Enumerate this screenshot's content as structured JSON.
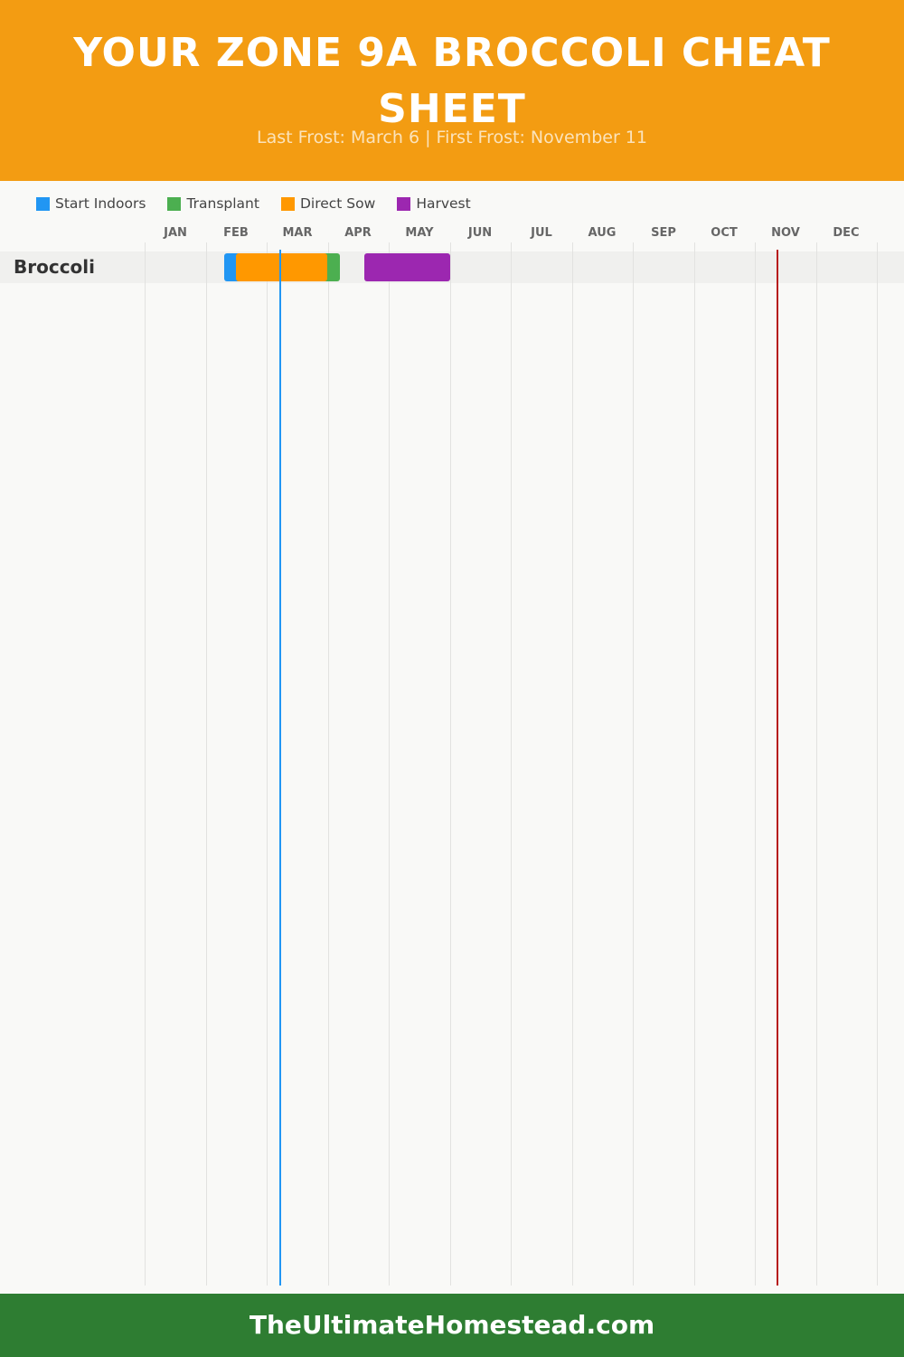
{
  "header": {
    "title": "YOUR ZONE 9A BROCCOLI CHEAT SHEET",
    "subtitle": "Last Frost: March 6 | First Frost: November 11"
  },
  "colors": {
    "header_bg": "#f39c12",
    "footer_bg": "#2e7d32",
    "last_frost_line": "#2196f3",
    "first_frost_line": "#b71c1c"
  },
  "chart_data": {
    "type": "gantt",
    "x_unit": "month",
    "categories": [
      "JAN",
      "FEB",
      "MAR",
      "APR",
      "MAY",
      "JUN",
      "JUL",
      "AUG",
      "SEP",
      "OCT",
      "NOV",
      "DEC"
    ],
    "legend": [
      {
        "key": "start_indoors",
        "label": "Start Indoors",
        "color": "#2196f3"
      },
      {
        "key": "transplant",
        "label": "Transplant",
        "color": "#4caf50"
      },
      {
        "key": "direct_sow",
        "label": "Direct Sow",
        "color": "#ff9800"
      },
      {
        "key": "harvest",
        "label": "Harvest",
        "color": "#9c27b0"
      }
    ],
    "legend_position": "top-left",
    "grid": true,
    "rows": [
      {
        "label": "Broccoli",
        "phases": [
          {
            "key": "start_indoors",
            "start_month": 2.3,
            "end_month": 3.5
          },
          {
            "key": "transplant",
            "start_month": 3.4,
            "end_month": 4.2
          },
          {
            "key": "direct_sow",
            "start_month": 2.5,
            "end_month": 4.0
          },
          {
            "key": "harvest",
            "start_month": 4.6,
            "end_month": 6.0
          }
        ]
      }
    ],
    "markers": [
      {
        "label": "Last Frost",
        "month": 3.2,
        "color": "#2196f3"
      },
      {
        "label": "First Frost",
        "month": 11.35,
        "color": "#b71c1c"
      }
    ]
  },
  "footer": {
    "text": "TheUltimateHomestead.com"
  }
}
